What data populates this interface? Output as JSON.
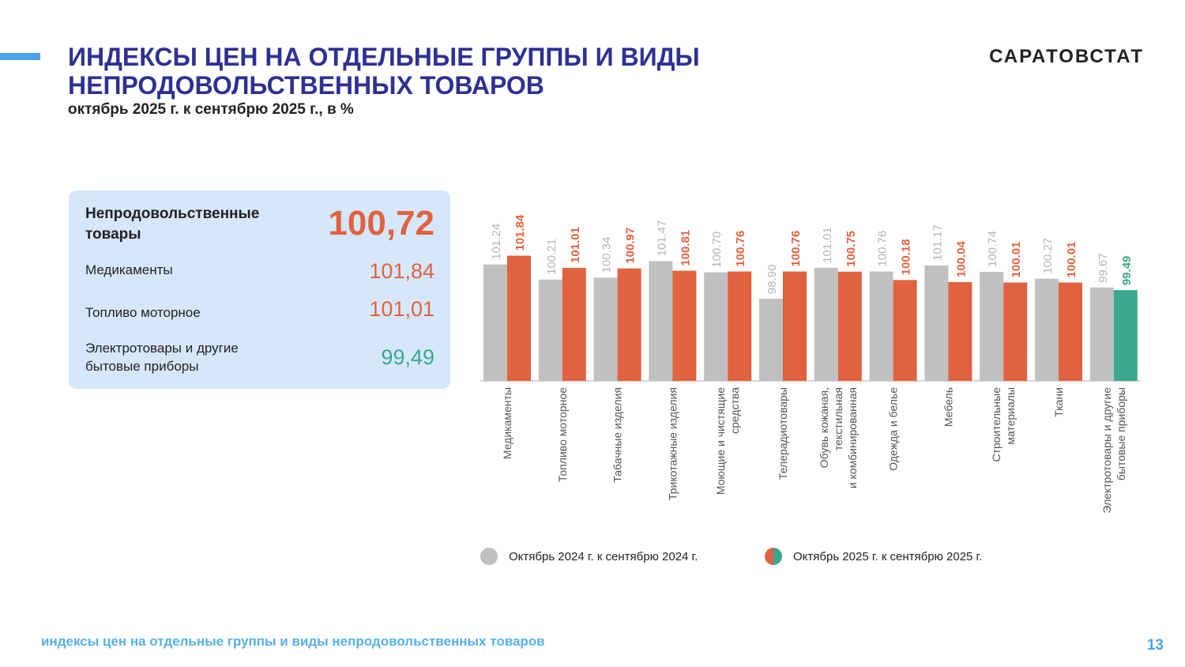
{
  "header": {
    "title_line1": "ИНДЕКСЫ ЦЕН НА ОТДЕЛЬНЫЕ ГРУППЫ И ВИДЫ",
    "title_line2": "НЕПРОДОВОЛЬСТВЕННЫХ ТОВАРОВ",
    "subtitle": "октябрь 2025 г. к сентябрю 2025 г., в %",
    "brand": "САРАТОВСТАТ"
  },
  "summary": {
    "main_label_line1": "Непродовольственные",
    "main_label_line2": "товары",
    "main_value": "100,72",
    "rows": [
      {
        "label_line1": "Медикаменты",
        "label_line2": "",
        "value": "101,84",
        "color": "#e1623f"
      },
      {
        "label_line1": "Топливо моторное",
        "label_line2": "",
        "value": "101,01",
        "color": "#e1623f"
      },
      {
        "label_line1": "Электротовары и другие",
        "label_line2": "бытовые приборы",
        "value": "99,49",
        "color": "#3aa88f"
      }
    ]
  },
  "chart_data": {
    "type": "bar",
    "categories": [
      [
        "Медикаменты"
      ],
      [
        "Топливо моторное"
      ],
      [
        "Табачные изделия"
      ],
      [
        "Трикотажные изделия"
      ],
      [
        "Моющие и чистящие",
        "средства"
      ],
      [
        "Телерадиотовары"
      ],
      [
        "Обувь кожаная,",
        "текстильная",
        "и комбинированная"
      ],
      [
        "Одежда и белье"
      ],
      [
        "Мебель"
      ],
      [
        "Строительные",
        "материалы"
      ],
      [
        "Ткани"
      ],
      [
        "Электротовары и другие",
        "бытовые приборы"
      ]
    ],
    "series": [
      {
        "name": "Октябрь 2024 г. к сентябрю 2024 г.",
        "color": "#c0c0c0",
        "label_color": "#b5b5b5",
        "values": [
          101.24,
          100.21,
          100.34,
          101.47,
          100.7,
          98.9,
          101.01,
          100.76,
          101.17,
          100.74,
          100.27,
          99.67
        ]
      },
      {
        "name": "Октябрь 2025 г. к сентябрю 2025 г.",
        "color": "#e1623f",
        "label_color": "#e1623f",
        "values": [
          101.84,
          101.01,
          100.97,
          100.81,
          100.76,
          100.76,
          100.75,
          100.18,
          100.04,
          100.01,
          100.01,
          99.49
        ]
      }
    ],
    "highlight_color": "#3aa88f",
    "highlight_index": 11,
    "ylim": [
      93.3,
      103
    ]
  },
  "footer": {
    "text": "индексы цен на отдельные группы и виды непродовольственных товаров",
    "page_number": "13"
  }
}
